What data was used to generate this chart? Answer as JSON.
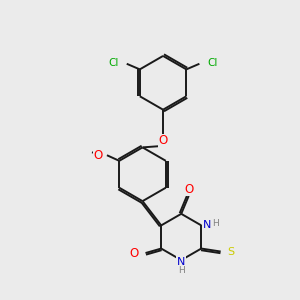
{
  "bg_color": "#ebebeb",
  "bond_color": "#1a1a1a",
  "bond_width": 1.4,
  "atom_colors": {
    "O": "#ff0000",
    "N": "#0000cd",
    "S": "#cccc00",
    "Cl": "#00aa00",
    "C": "#1a1a1a",
    "H": "#808080"
  },
  "font_size": 7.0
}
